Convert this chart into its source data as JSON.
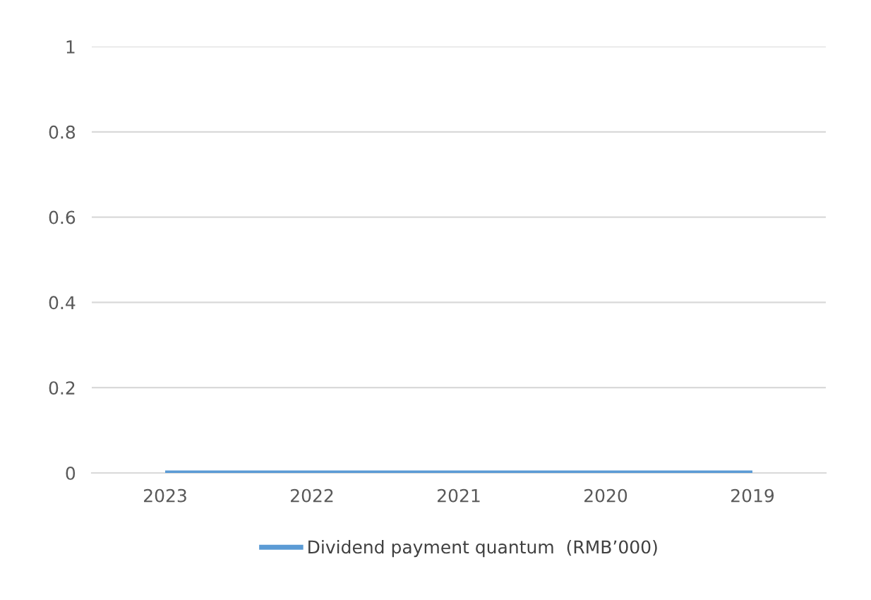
{
  "chart_data": {
    "type": "line",
    "categories": [
      "2023",
      "2022",
      "2021",
      "2020",
      "2019"
    ],
    "series": [
      {
        "name": "Dividend payment quantum  (RMB’000)",
        "color": "#5b9bd5",
        "values": [
          0,
          0,
          0,
          0,
          0
        ]
      }
    ],
    "ylim": [
      0,
      1
    ],
    "yticks": [
      0,
      0.2,
      0.4,
      0.6,
      0.8,
      1
    ],
    "grid": "y",
    "legend": "bottom",
    "marker": "none",
    "line_style": "solid"
  }
}
